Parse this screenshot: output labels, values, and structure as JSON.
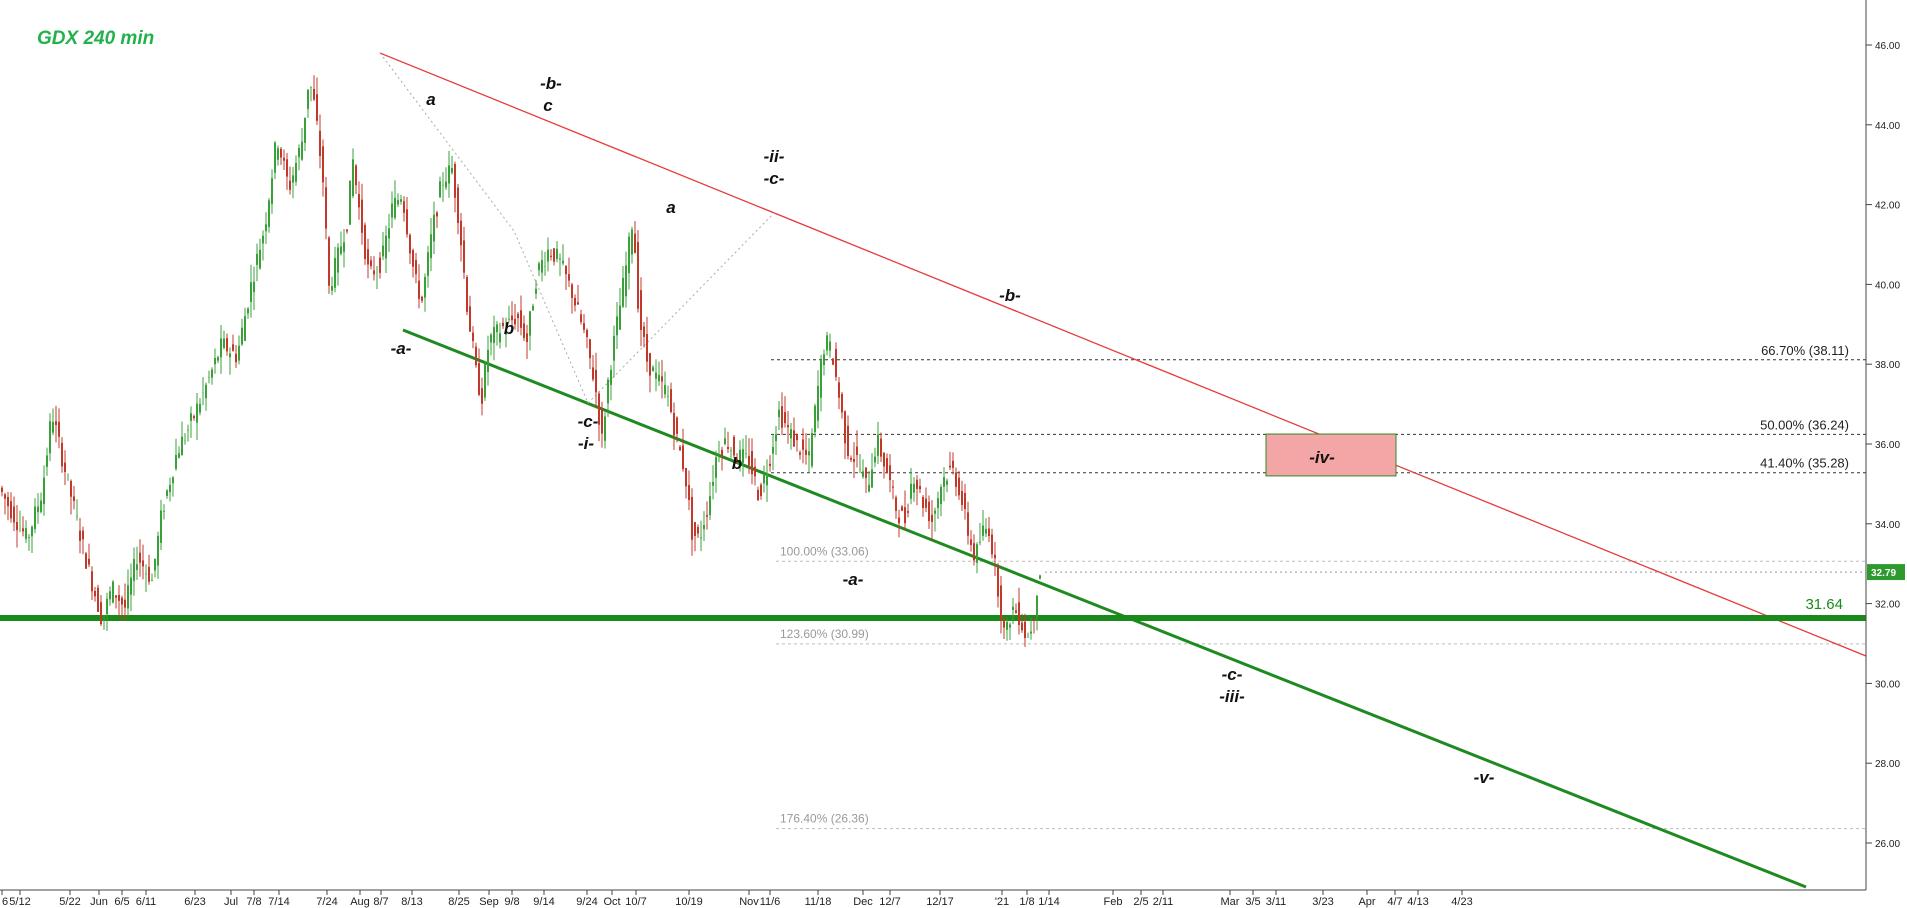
{
  "chart_data": {
    "type": "candlestick",
    "title": "GDX 240 min",
    "ylim": [
      25,
      47.7
    ],
    "y_ticks": [
      "26.00",
      "28.00",
      "30.00",
      "32.00",
      "34.00",
      "36.00",
      "38.00",
      "40.00",
      "42.00",
      "44.00",
      "46.00"
    ],
    "y_tick_values": [
      26,
      28,
      30,
      32,
      34,
      36,
      38,
      40,
      42,
      44,
      46
    ],
    "x_tick_labels": [
      "6",
      "5/12",
      "5/22",
      "Jun",
      "6/5",
      "6/11",
      "6/23",
      "Jul",
      "7/8",
      "7/14",
      "7/24",
      "Aug",
      "8/7",
      "8/13",
      "8/25",
      "Sep",
      "9/8",
      "9/14",
      "9/24",
      "Oct",
      "10/7",
      "10/19",
      "Nov",
      "11/6",
      "11/18",
      "Dec",
      "12/7",
      "12/17",
      "'21",
      "1/8",
      "1/14",
      "Feb",
      "2/5",
      "2/11",
      "Mar",
      "3/5",
      "3/11",
      "3/23",
      "Apr",
      "4/7",
      "4/13",
      "4/23"
    ],
    "last_price": "32.79",
    "support_level": {
      "value": 31.64,
      "label": "31.64",
      "color": "#1a8a1a"
    },
    "fib_levels": [
      {
        "label": "66.70% (38.11)",
        "value": 38.11,
        "style": "dark"
      },
      {
        "label": "50.00% (36.24)",
        "value": 36.24,
        "style": "dark"
      },
      {
        "label": "41.40% (35.28)",
        "value": 35.28,
        "style": "dark"
      },
      {
        "label": "100.00% (33.06)",
        "value": 33.06,
        "style": "faint"
      },
      {
        "label": "123.60% (30.99)",
        "value": 30.99,
        "style": "faint"
      },
      {
        "label": "176.40% (26.36)",
        "value": 26.36,
        "style": "faint"
      }
    ],
    "target_box": {
      "label": "-iv-",
      "y_low": 35.2,
      "y_high": 36.25,
      "color": "#f4a6a6"
    },
    "wave_labels": [
      "a",
      "-b-",
      "c",
      "-a-",
      "b",
      "-c-",
      "-i-",
      "a",
      "b",
      "-ii-",
      "-c-",
      "-a-",
      "-b-",
      "-c-",
      "-iii-",
      "-iv-",
      "-v-"
    ],
    "price_path": [
      [
        0,
        35
      ],
      [
        15,
        34.3
      ],
      [
        30,
        33.6
      ],
      [
        45,
        34.8
      ],
      [
        55,
        36.8
      ],
      [
        62,
        36
      ],
      [
        75,
        34.6
      ],
      [
        90,
        33
      ],
      [
        105,
        31.6
      ],
      [
        115,
        32.4
      ],
      [
        128,
        31.9
      ],
      [
        140,
        33.2
      ],
      [
        155,
        32.6
      ],
      [
        165,
        34.3
      ],
      [
        180,
        35.8
      ],
      [
        195,
        36.6
      ],
      [
        210,
        37.5
      ],
      [
        225,
        38.5
      ],
      [
        240,
        38.2
      ],
      [
        255,
        40.1
      ],
      [
        268,
        41.5
      ],
      [
        280,
        43.7
      ],
      [
        292,
        42.4
      ],
      [
        305,
        43.6
      ],
      [
        312,
        45.2
      ],
      [
        318,
        44.4
      ],
      [
        326,
        42.6
      ],
      [
        332,
        39.9
      ],
      [
        340,
        40.6
      ],
      [
        350,
        41.6
      ],
      [
        356,
        43.1
      ],
      [
        362,
        41.9
      ],
      [
        372,
        40.2
      ],
      [
        385,
        40.6
      ],
      [
        395,
        41.9
      ],
      [
        405,
        42.3
      ],
      [
        418,
        40.1
      ],
      [
        425,
        39.6
      ],
      [
        435,
        41.3
      ],
      [
        445,
        42.6
      ],
      [
        455,
        42.9
      ],
      [
        462,
        41.6
      ],
      [
        470,
        39.5
      ],
      [
        480,
        37.6
      ],
      [
        485,
        37.2
      ],
      [
        492,
        38.6
      ],
      [
        505,
        38.9
      ],
      [
        520,
        39.2
      ],
      [
        530,
        38.6
      ],
      [
        540,
        40.3
      ],
      [
        552,
        40.9
      ],
      [
        562,
        40.6
      ],
      [
        575,
        39.8
      ],
      [
        588,
        38.7
      ],
      [
        598,
        37.5
      ],
      [
        605,
        36.1
      ],
      [
        612,
        37.8
      ],
      [
        622,
        39.3
      ],
      [
        630,
        40.6
      ],
      [
        636,
        41.7
      ],
      [
        642,
        39.2
      ],
      [
        650,
        38.1
      ],
      [
        660,
        37.6
      ],
      [
        670,
        37.3
      ],
      [
        680,
        36.1
      ],
      [
        688,
        35.3
      ],
      [
        695,
        33.8
      ],
      [
        702,
        33.6
      ],
      [
        712,
        34.6
      ],
      [
        720,
        35.8
      ],
      [
        730,
        36.1
      ],
      [
        740,
        35.7
      ],
      [
        752,
        35.6
      ],
      [
        762,
        34.7
      ],
      [
        772,
        35.6
      ],
      [
        782,
        36.8
      ],
      [
        792,
        36.3
      ],
      [
        802,
        35.9
      ],
      [
        812,
        35.6
      ],
      [
        822,
        37.6
      ],
      [
        828,
        38.6
      ],
      [
        835,
        38.3
      ],
      [
        842,
        37.2
      ],
      [
        850,
        35.9
      ],
      [
        860,
        35.6
      ],
      [
        870,
        34.9
      ],
      [
        880,
        36.1
      ],
      [
        890,
        35.3
      ],
      [
        900,
        34.3
      ],
      [
        908,
        34.1
      ],
      [
        916,
        35.3
      ],
      [
        925,
        34.6
      ],
      [
        935,
        34.1
      ],
      [
        945,
        35.1
      ],
      [
        955,
        35.4
      ],
      [
        962,
        34.9
      ],
      [
        970,
        33.9
      ],
      [
        978,
        33.1
      ],
      [
        985,
        33.8
      ],
      [
        992,
        33.9
      ],
      [
        1000,
        32.6
      ],
      [
        1008,
        31.1
      ],
      [
        1015,
        31.9
      ],
      [
        1022,
        31.7
      ],
      [
        1030,
        31.1
      ],
      [
        1036,
        31.6
      ],
      [
        1042,
        32.79
      ]
    ]
  }
}
